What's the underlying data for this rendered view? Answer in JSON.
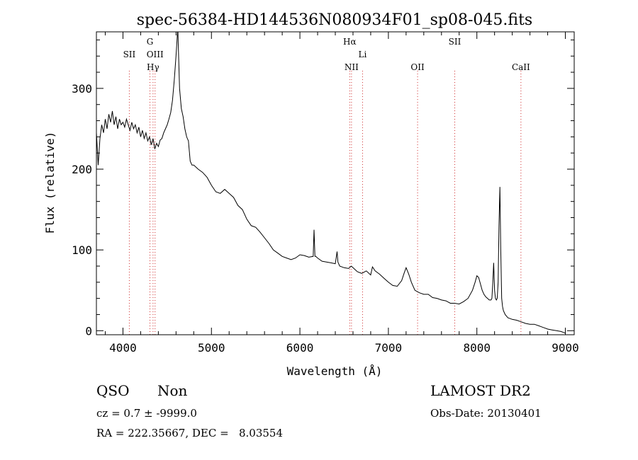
{
  "chart_data": {
    "type": "line",
    "title": "spec-56384-HD144536N080934F01_sp08-045.fits",
    "xlabel": "Wavelength (Å)",
    "ylabel": "Flux (relative)",
    "xlim": [
      3700,
      9100
    ],
    "ylim": [
      -5,
      370
    ],
    "xticks": [
      4000,
      5000,
      6000,
      7000,
      8000,
      9000
    ],
    "yticks": [
      0,
      100,
      200,
      300
    ],
    "grid": false,
    "series": [
      {
        "x": [
          3700,
          3720,
          3740,
          3760,
          3780,
          3800,
          3820,
          3840,
          3860,
          3880,
          3900,
          3920,
          3940,
          3960,
          3980,
          4000,
          4020,
          4040,
          4060,
          4080,
          4100,
          4120,
          4140,
          4160,
          4180,
          4200,
          4220,
          4240,
          4260,
          4280,
          4300,
          4320,
          4340,
          4360,
          4380,
          4400,
          4420,
          4440,
          4460,
          4480,
          4500,
          4520,
          4540,
          4560,
          4580,
          4600,
          4620,
          4640,
          4660,
          4680,
          4700,
          4720,
          4740,
          4760,
          4780,
          4800,
          4850,
          4900,
          4950,
          5000,
          5050,
          5100,
          5150,
          5200,
          5250,
          5300,
          5350,
          5400,
          5450,
          5500,
          5550,
          5600,
          5650,
          5700,
          5750,
          5800,
          5850,
          5900,
          5950,
          6000,
          6050,
          6100,
          6150,
          6160,
          6170,
          6180,
          6200,
          6250,
          6300,
          6350,
          6400,
          6410,
          6420,
          6430,
          6450,
          6500,
          6550,
          6580,
          6600,
          6650,
          6700,
          6750,
          6800,
          6820,
          6850,
          6900,
          6950,
          7000,
          7050,
          7100,
          7150,
          7180,
          7200,
          7230,
          7260,
          7300,
          7350,
          7400,
          7450,
          7500,
          7550,
          7600,
          7650,
          7700,
          7750,
          7800,
          7850,
          7900,
          7950,
          7980,
          8000,
          8020,
          8040,
          8060,
          8080,
          8100,
          8120,
          8140,
          8160,
          8170,
          8180,
          8190,
          8200,
          8210,
          8220,
          8230,
          8240,
          8250,
          8260,
          8270,
          8280,
          8290,
          8300,
          8320,
          8350,
          8400,
          8450,
          8500,
          8550,
          8600,
          8650,
          8700,
          8750,
          8800,
          8850,
          8900,
          8950,
          9000
        ],
        "values": [
          245,
          205,
          238,
          255,
          245,
          262,
          250,
          268,
          258,
          272,
          255,
          265,
          250,
          262,
          255,
          258,
          252,
          262,
          255,
          248,
          258,
          250,
          255,
          245,
          252,
          240,
          248,
          238,
          245,
          235,
          240,
          230,
          238,
          225,
          232,
          228,
          236,
          238,
          245,
          250,
          255,
          262,
          270,
          285,
          310,
          340,
          375,
          300,
          275,
          265,
          250,
          240,
          235,
          210,
          205,
          205,
          200,
          196,
          190,
          180,
          172,
          170,
          175,
          170,
          165,
          155,
          150,
          138,
          130,
          128,
          122,
          115,
          108,
          100,
          96,
          92,
          90,
          88,
          90,
          94,
          93,
          91,
          92,
          125,
          92,
          92,
          90,
          86,
          85,
          84,
          83,
          90,
          98,
          85,
          80,
          78,
          77,
          80,
          78,
          73,
          71,
          74,
          69,
          79,
          74,
          70,
          65,
          60,
          56,
          55,
          62,
          72,
          78,
          70,
          60,
          50,
          47,
          45,
          45,
          41,
          40,
          38,
          37,
          34,
          34,
          33,
          36,
          40,
          50,
          60,
          68,
          66,
          58,
          50,
          45,
          42,
          40,
          38,
          38,
          40,
          60,
          84,
          50,
          40,
          38,
          40,
          60,
          130,
          178,
          100,
          40,
          30,
          25,
          20,
          16,
          14,
          13,
          11,
          9,
          8,
          8,
          6,
          4,
          2,
          1,
          0,
          -1,
          -3
        ]
      }
    ],
    "lines": [
      {
        "label": "SII",
        "x": 4072
      },
      {
        "label": "G",
        "x": 4305
      },
      {
        "label": "OIII",
        "x": 4363
      },
      {
        "label": "Hγ",
        "x": 4340
      },
      {
        "label": "Hα",
        "x": 6563
      },
      {
        "label": "NII",
        "x": 6583
      },
      {
        "label": "Li",
        "x": 6708
      },
      {
        "label": "OII",
        "x": 7330
      },
      {
        "label": "SII",
        "x": 7750
      },
      {
        "label": "CaII",
        "x": 8498
      }
    ]
  },
  "info": {
    "class": "QSO",
    "subclass": "Non",
    "survey": "LAMOST DR2",
    "cz": "cz = 0.7 ± -9999.0",
    "obs_date": "Obs-Date: 20130401",
    "radec": "RA = 222.35667, DEC =   8.03554"
  }
}
